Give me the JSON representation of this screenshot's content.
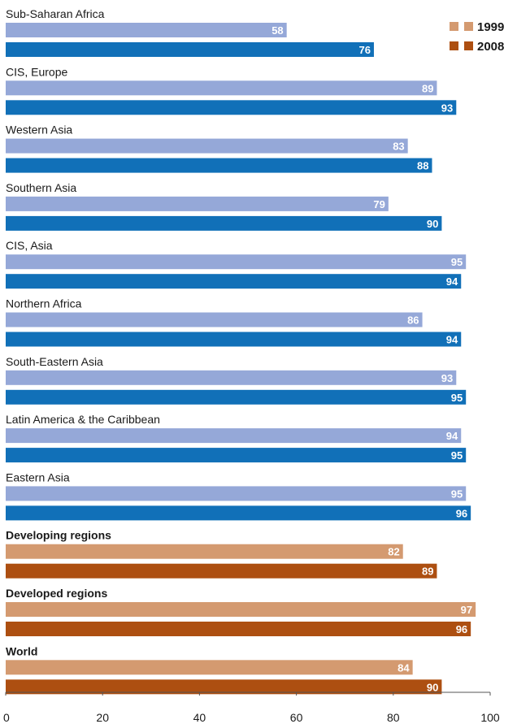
{
  "chart_data": {
    "type": "bar",
    "orientation": "horizontal",
    "categories": [
      "Sub-Saharan Africa",
      "CIS, Europe",
      "Western Asia",
      "Southern Asia",
      "CIS, Asia",
      "Northern Africa",
      "South-Eastern Asia",
      "Latin America & the Caribbean",
      "Eastern Asia",
      "Developing regions",
      "Developed regions",
      "World"
    ],
    "category_bold": [
      false,
      false,
      false,
      false,
      false,
      false,
      false,
      false,
      false,
      true,
      true,
      true
    ],
    "category_group": [
      "regional",
      "regional",
      "regional",
      "regional",
      "regional",
      "regional",
      "regional",
      "regional",
      "regional",
      "aggregate",
      "aggregate",
      "aggregate"
    ],
    "series": [
      {
        "name": "1999",
        "values": [
          58,
          89,
          83,
          79,
          95,
          86,
          93,
          94,
          95,
          82,
          97,
          84
        ]
      },
      {
        "name": "2008",
        "values": [
          76,
          93,
          88,
          90,
          94,
          94,
          95,
          95,
          96,
          89,
          96,
          90
        ]
      }
    ],
    "colors": {
      "regional": {
        "1999": "#95a8d8",
        "2008": "#1170b8"
      },
      "aggregate": {
        "1999": "#d49a70",
        "2008": "#ad4f11"
      },
      "legend": {
        "1999": "#d49a70",
        "2008": "#ad4f11"
      }
    },
    "xlim": [
      0,
      100
    ],
    "xticks": [
      0,
      20,
      40,
      60,
      80,
      100
    ],
    "title": "",
    "xlabel": "",
    "ylabel": "",
    "grid": false,
    "legend_position": "top-right"
  }
}
